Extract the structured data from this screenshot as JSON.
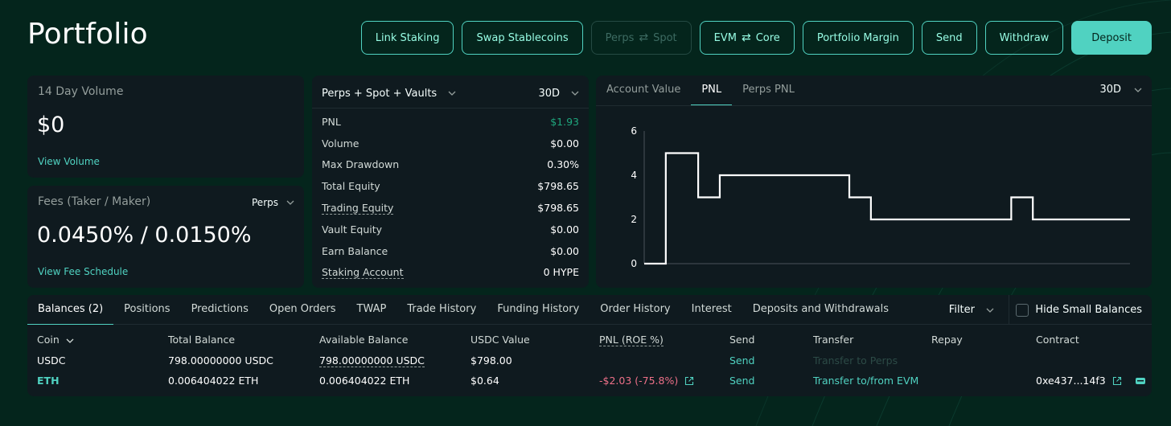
{
  "page_title": "Portfolio",
  "actions": {
    "link_staking": "Link Staking",
    "swap_stablecoins": "Swap Stablecoins",
    "perps_spot_left": "Perps",
    "perps_spot_right": "Spot",
    "evm_core_left": "EVM",
    "evm_core_right": "Core",
    "portfolio_margin": "Portfolio Margin",
    "send": "Send",
    "withdraw": "Withdraw",
    "deposit": "Deposit"
  },
  "volume_card": {
    "label": "14 Day Volume",
    "value": "$0",
    "link": "View Volume"
  },
  "fees_card": {
    "label": "Fees (Taker / Maker)",
    "selector": "Perps",
    "value": "0.0450% / 0.0150%",
    "link": "View Fee Schedule"
  },
  "summary": {
    "scope": "Perps + Spot + Vaults",
    "range": "30D",
    "rows": [
      {
        "label": "PNL",
        "value": "$1.93"
      },
      {
        "label": "Volume",
        "value": "$0.00"
      },
      {
        "label": "Max Drawdown",
        "value": "0.30%"
      },
      {
        "label": "Total Equity",
        "value": "$798.65"
      },
      {
        "label": "Trading Equity",
        "value": "$798.65"
      },
      {
        "label": "Vault Equity",
        "value": "$0.00"
      },
      {
        "label": "Earn Balance",
        "value": "$0.00"
      },
      {
        "label": "Staking Account",
        "value": "0 HYPE"
      }
    ]
  },
  "chart_panel": {
    "tabs": [
      "Account Value",
      "PNL",
      "Perps PNL"
    ],
    "active_tab": "PNL",
    "range": "30D"
  },
  "chart_data": {
    "type": "line",
    "step": true,
    "ylim": [
      0,
      6
    ],
    "yticks": [
      "0",
      "2",
      "4",
      "6"
    ],
    "x": [
      0,
      2,
      5,
      7,
      17,
      19,
      21,
      32,
      34,
      36,
      45
    ],
    "values": [
      0,
      5,
      3,
      4,
      4,
      3,
      2,
      2,
      3,
      2,
      2
    ],
    "x_max": 45,
    "line_color": "#ffffff"
  },
  "bottom_tabs": [
    "Balances (2)",
    "Positions",
    "Predictions",
    "Open Orders",
    "TWAP",
    "Trade History",
    "Funding History",
    "Order History",
    "Interest",
    "Deposits and Withdrawals"
  ],
  "filter_label": "Filter",
  "hide_small_label": "Hide Small Balances",
  "table": {
    "headers": {
      "coin": "Coin",
      "total": "Total Balance",
      "available": "Available Balance",
      "usdc": "USDC Value",
      "pnl": "PNL (ROE %)",
      "send": "Send",
      "transfer": "Transfer",
      "repay": "Repay",
      "contract": "Contract"
    },
    "rows": [
      {
        "coin": "USDC",
        "total": "798.00000000 USDC",
        "available": "798.00000000 USDC",
        "usdc": "$798.00",
        "pnl": "",
        "send": "Send",
        "transfer": "Transfer to Perps",
        "contract": ""
      },
      {
        "coin": "ETH",
        "total": "0.006404022 ETH",
        "available": "0.006404022 ETH",
        "usdc": "$0.64",
        "pnl": "-$2.03 (-75.8%)",
        "send": "Send",
        "transfer": "Transfer to/from EVM",
        "contract": "0xe437...14f3"
      }
    ]
  },
  "colors": {
    "accent": "#50d2c1",
    "positive": "#1fa67d",
    "negative": "#ed7088",
    "card": "#0f1a1f",
    "background": "#04251c"
  }
}
